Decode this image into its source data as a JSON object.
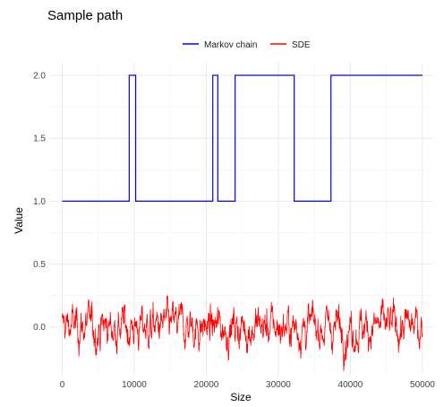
{
  "chart_data": {
    "type": "line",
    "title": "Sample path",
    "xlabel": "Size",
    "ylabel": "Value",
    "xlim": [
      -1800,
      51500
    ],
    "ylim": [
      -0.38,
      2.1
    ],
    "x_ticks": [
      0,
      10000,
      20000,
      30000,
      40000,
      50000
    ],
    "x_tick_labels": [
      "0",
      "10000",
      "20000",
      "30000",
      "40000",
      "50000"
    ],
    "y_ticks": [
      0.0,
      0.5,
      1.0,
      1.5,
      2.0
    ],
    "y_tick_labels": [
      "0.0",
      "0.5",
      "1.0",
      "1.5",
      "2.0"
    ],
    "grid": true,
    "legend_position": "top",
    "series": [
      {
        "name": "Markov chain",
        "color": "#0000ff",
        "style": "step",
        "x": [
          0,
          9300,
          10200,
          20900,
          21600,
          24000,
          32200,
          37300,
          50000
        ],
        "y": [
          1,
          2,
          1,
          2,
          1,
          2,
          1,
          2,
          2
        ]
      },
      {
        "name": "SDE",
        "color": "#ff0000",
        "style": "noise",
        "x_range": [
          0,
          50000
        ],
        "baseline": 0.0,
        "y_min": -0.35,
        "y_max": 0.36
      }
    ]
  }
}
